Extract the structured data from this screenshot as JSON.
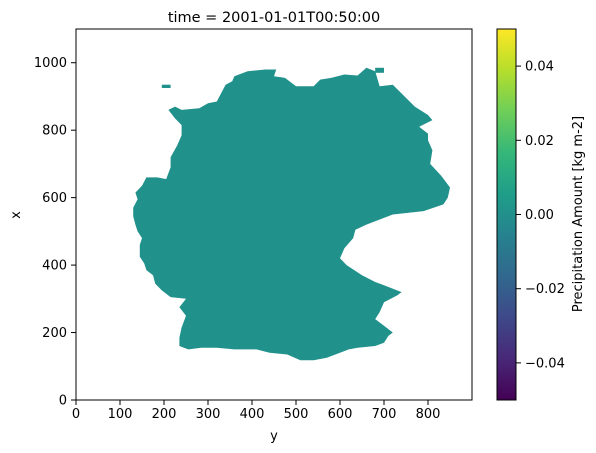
{
  "chart_data": {
    "type": "heatmap",
    "title": "time = 2001-01-01T00:50:00",
    "xlabel": "y",
    "ylabel": "x",
    "xlim": [
      0,
      900
    ],
    "ylim": [
      0,
      1100
    ],
    "xticks": [
      0,
      100,
      200,
      300,
      400,
      500,
      600,
      700,
      800
    ],
    "yticks": [
      0,
      200,
      400,
      600,
      800,
      1000
    ],
    "field_value": 0.0,
    "field_color": "#21918c",
    "masked_region": "Germany (values outside are NaN)",
    "outline": [
      [
        240,
        860
      ],
      [
        280,
        865
      ],
      [
        300,
        880
      ],
      [
        320,
        885
      ],
      [
        340,
        935
      ],
      [
        355,
        945
      ],
      [
        360,
        960
      ],
      [
        390,
        975
      ],
      [
        430,
        980
      ],
      [
        455,
        980
      ],
      [
        450,
        960
      ],
      [
        475,
        955
      ],
      [
        500,
        930
      ],
      [
        540,
        930
      ],
      [
        555,
        950
      ],
      [
        580,
        955
      ],
      [
        610,
        965
      ],
      [
        640,
        962
      ],
      [
        660,
        985
      ],
      [
        680,
        975
      ],
      [
        690,
        930
      ],
      [
        720,
        935
      ],
      [
        770,
        870
      ],
      [
        800,
        845
      ],
      [
        810,
        830
      ],
      [
        780,
        810
      ],
      [
        800,
        790
      ],
      [
        800,
        770
      ],
      [
        810,
        740
      ],
      [
        805,
        700
      ],
      [
        830,
        665
      ],
      [
        850,
        630
      ],
      [
        845,
        600
      ],
      [
        835,
        580
      ],
      [
        790,
        560
      ],
      [
        720,
        550
      ],
      [
        660,
        520
      ],
      [
        635,
        505
      ],
      [
        630,
        480
      ],
      [
        610,
        450
      ],
      [
        600,
        420
      ],
      [
        615,
        400
      ],
      [
        650,
        370
      ],
      [
        680,
        350
      ],
      [
        700,
        340
      ],
      [
        740,
        320
      ],
      [
        730,
        310
      ],
      [
        700,
        290
      ],
      [
        690,
        260
      ],
      [
        680,
        240
      ],
      [
        700,
        220
      ],
      [
        720,
        200
      ],
      [
        710,
        190
      ],
      [
        700,
        170
      ],
      [
        680,
        160
      ],
      [
        640,
        155
      ],
      [
        620,
        150
      ],
      [
        600,
        140
      ],
      [
        570,
        125
      ],
      [
        540,
        118
      ],
      [
        510,
        118
      ],
      [
        480,
        135
      ],
      [
        440,
        140
      ],
      [
        410,
        150
      ],
      [
        390,
        150
      ],
      [
        360,
        150
      ],
      [
        320,
        155
      ],
      [
        285,
        155
      ],
      [
        255,
        150
      ],
      [
        235,
        160
      ],
      [
        235,
        185
      ],
      [
        240,
        215
      ],
      [
        250,
        250
      ],
      [
        235,
        275
      ],
      [
        250,
        300
      ],
      [
        215,
        305
      ],
      [
        195,
        325
      ],
      [
        180,
        345
      ],
      [
        175,
        370
      ],
      [
        160,
        385
      ],
      [
        155,
        405
      ],
      [
        145,
        425
      ],
      [
        145,
        460
      ],
      [
        150,
        480
      ],
      [
        140,
        500
      ],
      [
        135,
        520
      ],
      [
        130,
        545
      ],
      [
        130,
        570
      ],
      [
        140,
        595
      ],
      [
        135,
        615
      ],
      [
        150,
        635
      ],
      [
        160,
        660
      ],
      [
        185,
        660
      ],
      [
        205,
        655
      ],
      [
        215,
        690
      ],
      [
        215,
        720
      ],
      [
        230,
        755
      ],
      [
        240,
        785
      ],
      [
        240,
        815
      ],
      [
        225,
        835
      ],
      [
        210,
        860
      ],
      [
        225,
        870
      ],
      [
        240,
        860
      ]
    ],
    "islands": [
      [
        [
          195,
          935
        ],
        [
          215,
          935
        ],
        [
          215,
          925
        ],
        [
          195,
          925
        ],
        [
          195,
          935
        ]
      ],
      [
        [
          680,
          985
        ],
        [
          700,
          985
        ],
        [
          700,
          970
        ],
        [
          680,
          970
        ],
        [
          680,
          985
        ]
      ]
    ],
    "colorbar": {
      "label": "Precipitation Amount [kg m-2]",
      "min": -0.05,
      "max": 0.05,
      "ticks": [
        -0.04,
        -0.02,
        0.0,
        0.02,
        0.04
      ],
      "tick_labels": [
        "−0.04",
        "−0.02",
        "0.00",
        "0.02",
        "0.04"
      ],
      "colormap": "viridis",
      "stops": [
        "#440154",
        "#482878",
        "#3e4989",
        "#31688e",
        "#26828e",
        "#1f9e89",
        "#35b779",
        "#6ece58",
        "#b5de2b",
        "#fde725"
      ]
    }
  }
}
